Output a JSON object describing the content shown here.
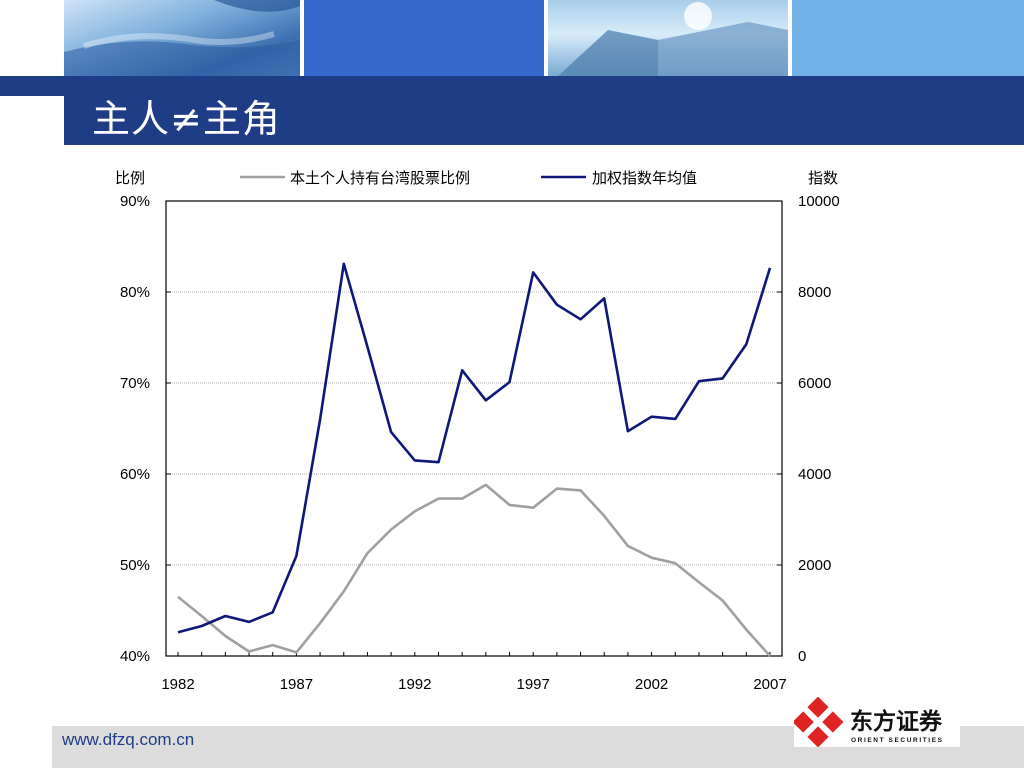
{
  "title": "主人≠主角",
  "footer_url": "www.dfzq.com.cn",
  "logo": {
    "name": "东方证券",
    "subtitle": "ORIENT SECURITIES"
  },
  "colors": {
    "brand_blue": "#1f3d86",
    "line_index": "#0d1878",
    "line_ratio": "#a0a0a0"
  },
  "chart_data": {
    "type": "line",
    "left_axis_label": "比例",
    "right_axis_label": "指数",
    "x": [
      1982,
      1983,
      1984,
      1985,
      1986,
      1987,
      1988,
      1989,
      1990,
      1991,
      1992,
      1993,
      1994,
      1995,
      1996,
      1997,
      1998,
      1999,
      2000,
      2001,
      2002,
      2003,
      2004,
      2005,
      2006,
      2007
    ],
    "x_ticks": [
      "1982",
      "1987",
      "1992",
      "1997",
      "2002",
      "2007"
    ],
    "left_ticks": [
      "40%",
      "50%",
      "60%",
      "70%",
      "80%",
      "90%"
    ],
    "right_ticks": [
      "0",
      "2000",
      "4000",
      "6000",
      "8000",
      "10000"
    ],
    "ylim_left": [
      40,
      90
    ],
    "ylim_right": [
      0,
      10000
    ],
    "grid": true,
    "legend_position": "top",
    "series": [
      {
        "name": "本土个人持有台湾股票比例",
        "axis": "left",
        "color": "#a0a0a0",
        "values": [
          46.5,
          44.4,
          42.2,
          40.5,
          41.2,
          40.4,
          43.6,
          47.1,
          51.3,
          53.9,
          55.9,
          57.3,
          57.3,
          58.8,
          56.6,
          56.3,
          58.4,
          58.2,
          55.4,
          52.1,
          50.8,
          50.2,
          48.1,
          46.1,
          42.9,
          40.0
        ]
      },
      {
        "name": "加权指数年均值",
        "axis": "right",
        "color": "#0d1878",
        "values": [
          520,
          660,
          880,
          750,
          960,
          2200,
          5200,
          8620,
          6800,
          4920,
          4300,
          4260,
          6280,
          5620,
          6020,
          8430,
          7720,
          7400,
          7860,
          4940,
          5260,
          5210,
          6040,
          6100,
          6850,
          8530
        ]
      }
    ]
  }
}
